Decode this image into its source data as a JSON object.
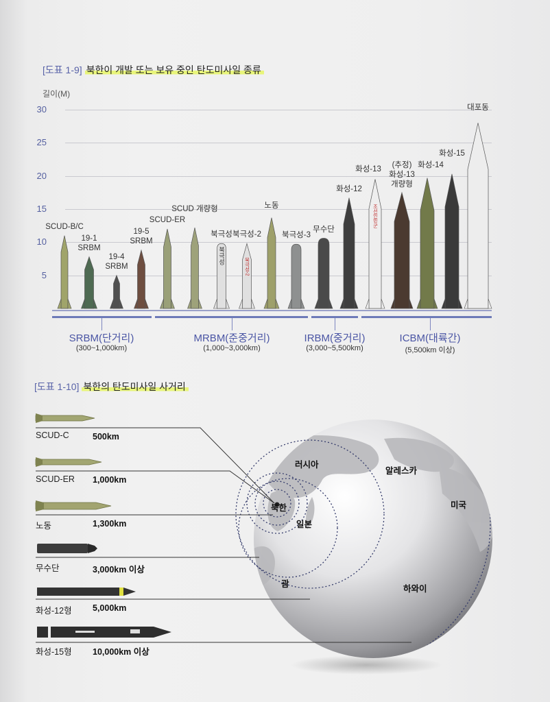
{
  "fig1": {
    "number": "[도표 1-9]",
    "title": "북한이 개발 또는 보유 중인 탄도미사일 종류",
    "y_axis_label": "길이(M)"
  },
  "chart_data": {
    "type": "bar",
    "ylabel": "길이(M)",
    "ylim": [
      0,
      30
    ],
    "yticks": [
      "30",
      "25",
      "20",
      "15",
      "10",
      "5"
    ],
    "grid": true,
    "missiles": [
      {
        "label": "SCUD-B/C",
        "length": 11,
        "color": "#a0a46a",
        "shape": "pointed",
        "body_text": ""
      },
      {
        "label": "19-1\nSRBM",
        "length": 7.8,
        "color": "#4e6a52",
        "shape": "pointed",
        "body_text": ""
      },
      {
        "label": "19-4\nSRBM",
        "length": 5.0,
        "color": "#505050",
        "shape": "pointed",
        "body_text": ""
      },
      {
        "label": "19-5\nSRBM",
        "length": 8.8,
        "color": "#6e4e40",
        "shape": "pointed",
        "body_text": ""
      },
      {
        "label": "SCUD-ER",
        "length": 12,
        "color": "#9aa078",
        "shape": "pointed",
        "body_text": ""
      },
      {
        "label": "SCUD 개량형",
        "length": 12.2,
        "color": "#9ea27a",
        "shape": "pointed",
        "body_text": ""
      },
      {
        "label": "북극성",
        "length": 9.8,
        "color": "#e0e0e0",
        "shape": "rounded",
        "body_text": "북극성"
      },
      {
        "label": "북극성-2",
        "length": 9.8,
        "color": "#e0e0e0",
        "shape": "pointed",
        "body_text": "북극성-2"
      },
      {
        "label": "노동",
        "length": 13.7,
        "color": "#9ea06a",
        "shape": "pointed",
        "body_text": ""
      },
      {
        "label": "북극성-3",
        "length": 9.7,
        "color": "#8e9090",
        "shape": "rounded",
        "body_text": ""
      },
      {
        "label": "무수단",
        "length": 10.6,
        "color": "#4a4a4a",
        "shape": "rounded",
        "body_text": ""
      },
      {
        "label": "화성-12",
        "length": 16.7,
        "color": "#3e3e3e",
        "shape": "pointed",
        "body_text": ""
      },
      {
        "label": "화성-13",
        "length": 19.5,
        "color": "#eeeeee",
        "shape": "pointed",
        "body_text": "조선인민군"
      },
      {
        "label": "(추정)\n화성-13\n개량형",
        "length": 17.5,
        "color": "#4b3a30",
        "shape": "pointed",
        "body_text": ""
      },
      {
        "label": "화성-14",
        "length": 19.7,
        "color": "#727a4a",
        "shape": "pointed",
        "body_text": ""
      },
      {
        "label": "화성-15",
        "length": 20.3,
        "color": "#3a3a3a",
        "shape": "pointed",
        "body_text": ""
      },
      {
        "label": "대포동",
        "length": 28,
        "color": "#ededed",
        "shape": "pointed",
        "body_text": ""
      }
    ],
    "categories": [
      {
        "name": "SRBM(단거리)",
        "range": "(300~1,000km)"
      },
      {
        "name": "MRBM(준중거리)",
        "range": "(1,000~3,000km)"
      },
      {
        "name": "IRBM(중거리)",
        "range": "(3,000~5,500km)"
      },
      {
        "name": "ICBM(대륙간)",
        "range": "(5,500km 이상)"
      }
    ]
  },
  "fig2": {
    "number": "[도표 1-10]",
    "title": "북한의 탄도미사일 사거리",
    "rows": [
      {
        "name": "SCUD-C",
        "range": "500km"
      },
      {
        "name": "SCUD-ER",
        "range": "1,000km"
      },
      {
        "name": "노동",
        "range": "1,300km"
      },
      {
        "name": "무수단",
        "range": "3,000km 이상"
      },
      {
        "name": "화성-12형",
        "range": "5,000km"
      },
      {
        "name": "화성-15형",
        "range": "10,000km 이상"
      }
    ],
    "map_labels": {
      "russia": "러시아",
      "alaska": "알레스카",
      "nk": "북한",
      "japan": "일본",
      "usa": "미국",
      "guam": "괌",
      "hawaii": "하와이"
    }
  }
}
